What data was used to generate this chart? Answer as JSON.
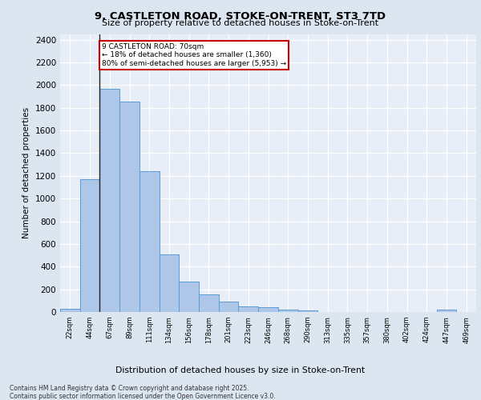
{
  "title_line1": "9, CASTLETON ROAD, STOKE-ON-TRENT, ST3 7TD",
  "title_line2": "Size of property relative to detached houses in Stoke-on-Trent",
  "xlabel": "Distribution of detached houses by size in Stoke-on-Trent",
  "ylabel": "Number of detached properties",
  "categories": [
    "22sqm",
    "44sqm",
    "67sqm",
    "89sqm",
    "111sqm",
    "134sqm",
    "156sqm",
    "178sqm",
    "201sqm",
    "223sqm",
    "246sqm",
    "268sqm",
    "290sqm",
    "313sqm",
    "335sqm",
    "357sqm",
    "380sqm",
    "402sqm",
    "424sqm",
    "447sqm",
    "469sqm"
  ],
  "values": [
    25,
    1170,
    1970,
    1855,
    1240,
    510,
    270,
    155,
    90,
    48,
    40,
    20,
    15,
    0,
    0,
    0,
    0,
    0,
    0,
    20,
    0
  ],
  "bar_color": "#aec6e8",
  "bar_edge_color": "#5b9bd5",
  "annotation_text": "9 CASTLETON ROAD: 70sqm\n← 18% of detached houses are smaller (1,360)\n80% of semi-detached houses are larger (5,953) →",
  "annotation_box_color": "#ffffff",
  "annotation_box_edge": "#cc0000",
  "subject_line_color": "#222222",
  "background_color": "#dce6f1",
  "plot_background_color": "#e8eef7",
  "grid_color": "#ffffff",
  "footer_line1": "Contains HM Land Registry data © Crown copyright and database right 2025.",
  "footer_line2": "Contains public sector information licensed under the Open Government Licence v3.0.",
  "ylim": [
    0,
    2450
  ],
  "yticks": [
    0,
    200,
    400,
    600,
    800,
    1000,
    1200,
    1400,
    1600,
    1800,
    2000,
    2200,
    2400
  ]
}
